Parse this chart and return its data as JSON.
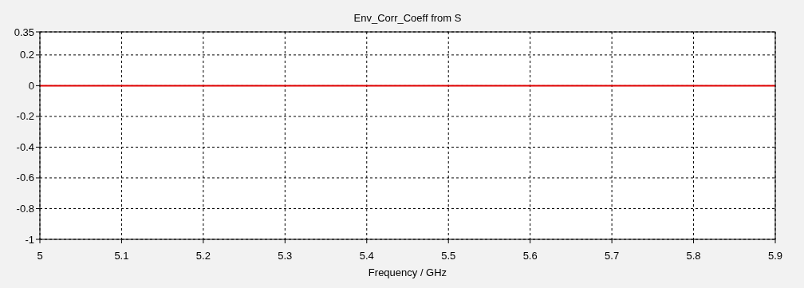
{
  "chart_data": {
    "type": "line",
    "title": "Env_Corr_Coeff from S",
    "xlabel": "Frequency / GHz",
    "x": [
      5,
      5.9
    ],
    "series": [
      {
        "color": "#e00000",
        "values": [
          0,
          0
        ]
      }
    ],
    "xlim": [
      5,
      5.9
    ],
    "ylim": [
      -1,
      0.35
    ],
    "xticks": [
      5,
      5.1,
      5.2,
      5.3,
      5.4,
      5.5,
      5.6,
      5.7,
      5.8,
      5.9
    ],
    "yticks": [
      0.35,
      0.2,
      0,
      -0.2,
      -0.4,
      -0.6,
      -0.8,
      -1
    ],
    "grid": true,
    "marker": "none",
    "line_style": "solid"
  }
}
